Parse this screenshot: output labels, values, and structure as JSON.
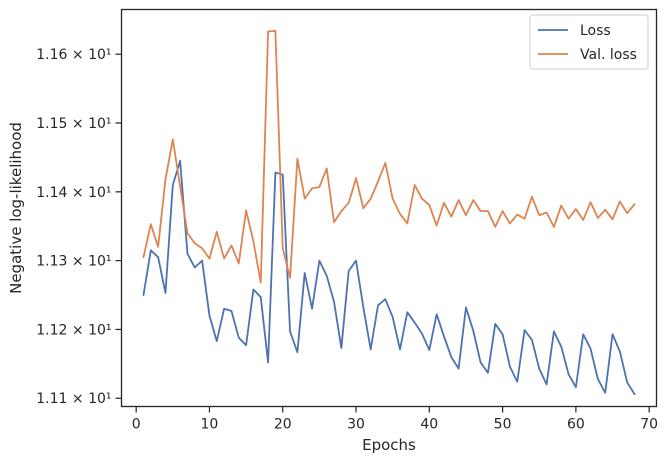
{
  "chart_data": {
    "type": "line",
    "xlabel": "Epochs",
    "ylabel": "Negative log-likelihood",
    "xlim": [
      -2,
      71
    ],
    "ylim": [
      11.088,
      11.665
    ],
    "x_ticks": [
      0,
      10,
      20,
      30,
      40,
      50,
      60,
      70
    ],
    "y_ticks": [
      {
        "value": 11.1,
        "label": "1.11 × 10¹"
      },
      {
        "value": 11.2,
        "label": "1.12 × 10¹"
      },
      {
        "value": 11.3,
        "label": "1.13 × 10¹"
      },
      {
        "value": 11.4,
        "label": "1.14 × 10¹"
      },
      {
        "value": 11.5,
        "label": "1.15 × 10¹"
      },
      {
        "value": 11.6,
        "label": "1.16 × 10¹"
      }
    ],
    "grid": false,
    "legend_position": "top-right",
    "x": [
      1,
      2,
      3,
      4,
      5,
      6,
      7,
      8,
      9,
      10,
      11,
      12,
      13,
      14,
      15,
      16,
      17,
      18,
      19,
      20,
      21,
      22,
      23,
      24,
      25,
      26,
      27,
      28,
      29,
      30,
      31,
      32,
      33,
      34,
      35,
      36,
      37,
      38,
      39,
      40,
      41,
      42,
      43,
      44,
      45,
      46,
      47,
      48,
      49,
      50,
      51,
      52,
      53,
      54,
      55,
      56,
      57,
      58,
      59,
      60,
      61,
      62,
      63,
      64,
      65,
      66,
      67,
      68
    ],
    "series": [
      {
        "name": "Loss",
        "color": "#4c72b0",
        "values": [
          11.25,
          11.315,
          11.305,
          11.253,
          11.41,
          11.445,
          11.31,
          11.29,
          11.3,
          11.22,
          11.183,
          11.23,
          11.227,
          11.188,
          11.177,
          11.258,
          11.247,
          11.152,
          11.428,
          11.425,
          11.197,
          11.167,
          11.282,
          11.23,
          11.3,
          11.278,
          11.24,
          11.173,
          11.285,
          11.3,
          11.232,
          11.171,
          11.235,
          11.244,
          11.218,
          11.171,
          11.225,
          11.21,
          11.194,
          11.17,
          11.222,
          11.19,
          11.16,
          11.143,
          11.232,
          11.198,
          11.152,
          11.137,
          11.208,
          11.193,
          11.146,
          11.124,
          11.199,
          11.185,
          11.143,
          11.12,
          11.197,
          11.175,
          11.135,
          11.116,
          11.193,
          11.172,
          11.128,
          11.108,
          11.193,
          11.168,
          11.123,
          11.106
        ]
      },
      {
        "name": "Val. loss",
        "color": "#dd8452",
        "values": [
          11.305,
          11.353,
          11.32,
          11.418,
          11.476,
          11.408,
          11.34,
          11.325,
          11.318,
          11.303,
          11.342,
          11.303,
          11.322,
          11.296,
          11.373,
          11.328,
          11.268,
          11.633,
          11.634,
          11.318,
          11.275,
          11.448,
          11.39,
          11.405,
          11.407,
          11.434,
          11.356,
          11.372,
          11.384,
          11.42,
          11.376,
          11.39,
          11.415,
          11.442,
          11.39,
          11.368,
          11.354,
          11.41,
          11.39,
          11.381,
          11.351,
          11.384,
          11.364,
          11.388,
          11.366,
          11.388,
          11.372,
          11.372,
          11.349,
          11.372,
          11.354,
          11.367,
          11.361,
          11.393,
          11.366,
          11.37,
          11.349,
          11.38,
          11.361,
          11.375,
          11.359,
          11.385,
          11.362,
          11.374,
          11.36,
          11.386,
          11.369,
          11.382
        ]
      }
    ]
  }
}
